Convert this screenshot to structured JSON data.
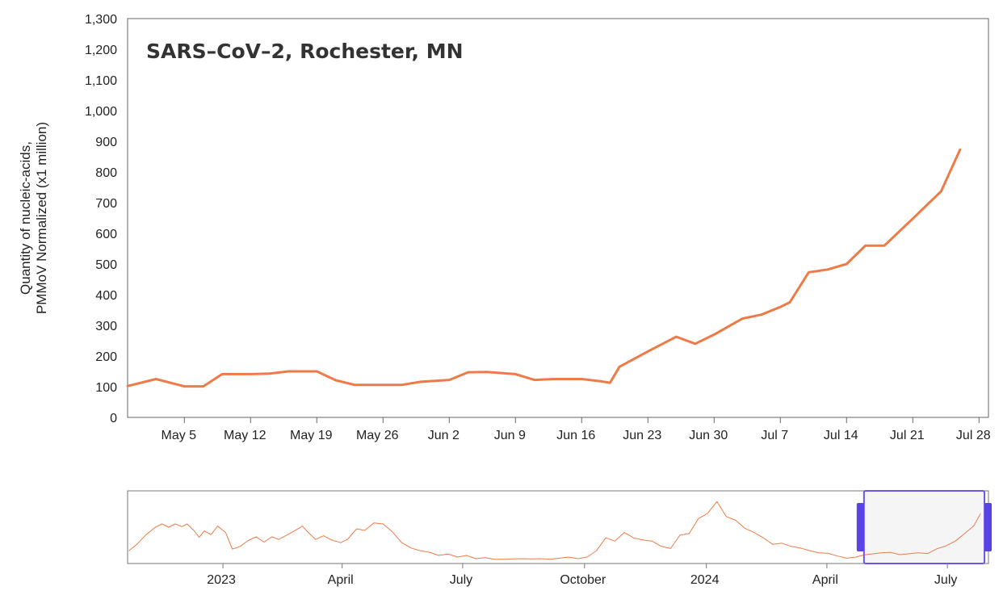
{
  "chart_data": [
    {
      "type": "line",
      "title": "SARS–CoV–2, Rochester, MN",
      "ylabel_lines": [
        "Quantity of nucleic-acids,",
        "PMMoV Normalized (x1 million)"
      ],
      "xlabel": "",
      "ylim": [
        0,
        1300
      ],
      "yticks": [
        "0",
        "100",
        "200",
        "300",
        "400",
        "500",
        "600",
        "700",
        "800",
        "900",
        "1,000",
        "1,100",
        "1,200",
        "1,300"
      ],
      "ytick_values": [
        0,
        100,
        200,
        300,
        400,
        500,
        600,
        700,
        800,
        900,
        1000,
        1100,
        1200,
        1300
      ],
      "xlim": [
        "2024-04-29",
        "2024-07-29"
      ],
      "xtick_dates": [
        "2024-05-05",
        "2024-05-12",
        "2024-05-19",
        "2024-05-26",
        "2024-06-02",
        "2024-06-09",
        "2024-06-16",
        "2024-06-23",
        "2024-06-30",
        "2024-07-07",
        "2024-07-14",
        "2024-07-21",
        "2024-07-28"
      ],
      "xtick_labels": [
        "May 5",
        "May 12",
        "May 19",
        "May 26",
        "Jun 2",
        "Jun 9",
        "Jun 16",
        "Jun 23",
        "Jun 30",
        "Jul 7",
        "Jul 14",
        "Jul 21",
        "Jul 28"
      ],
      "grid": false,
      "series": [
        {
          "color": "#ee7b47",
          "points": [
            [
              "2024-04-29",
              102
            ],
            [
              "2024-05-02",
              125
            ],
            [
              "2024-05-05",
              101
            ],
            [
              "2024-05-07",
              101
            ],
            [
              "2024-05-09",
              141
            ],
            [
              "2024-05-12",
              141
            ],
            [
              "2024-05-14",
              143
            ],
            [
              "2024-05-16",
              150
            ],
            [
              "2024-05-19",
              150
            ],
            [
              "2024-05-21",
              121
            ],
            [
              "2024-05-23",
              106
            ],
            [
              "2024-05-26",
              106
            ],
            [
              "2024-05-28",
              106
            ],
            [
              "2024-05-30",
              116
            ],
            [
              "2024-06-02",
              122
            ],
            [
              "2024-06-04",
              147
            ],
            [
              "2024-06-06",
              148
            ],
            [
              "2024-06-09",
              141
            ],
            [
              "2024-06-11",
              122
            ],
            [
              "2024-06-13",
              125
            ],
            [
              "2024-06-16",
              125
            ],
            [
              "2024-06-18",
              118
            ],
            [
              "2024-06-19",
              113
            ],
            [
              "2024-06-20",
              165
            ],
            [
              "2024-06-23",
              215
            ],
            [
              "2024-06-26",
              263
            ],
            [
              "2024-06-28",
              240
            ],
            [
              "2024-06-30",
              270
            ],
            [
              "2024-07-03",
              322
            ],
            [
              "2024-07-05",
              335
            ],
            [
              "2024-07-07",
              360
            ],
            [
              "2024-07-08",
              375
            ],
            [
              "2024-07-10",
              473
            ],
            [
              "2024-07-12",
              482
            ],
            [
              "2024-07-14",
              500
            ],
            [
              "2024-07-16",
              560
            ],
            [
              "2024-07-18",
              560
            ],
            [
              "2024-07-21",
              648
            ],
            [
              "2024-07-24",
              737
            ],
            [
              "2024-07-26",
              873
            ]
          ]
        }
      ]
    },
    {
      "type": "line",
      "xlim": [
        "2022-10-21",
        "2024-08-01"
      ],
      "xtick_dates": [
        "2023-01-01",
        "2023-04-01",
        "2023-07-01",
        "2023-10-01",
        "2024-01-01",
        "2024-04-01",
        "2024-07-01"
      ],
      "xtick_labels": [
        "2023",
        "April",
        "July",
        "October",
        "2024",
        "April",
        "July"
      ],
      "ylim": [
        0,
        1300
      ],
      "selection": [
        "2024-04-29",
        "2024-07-29"
      ],
      "series": [
        {
          "color": "#ee7b47",
          "points": [
            [
              "2022-10-22",
              180
            ],
            [
              "2022-10-28",
              300
            ],
            [
              "2022-11-04",
              480
            ],
            [
              "2022-11-11",
              620
            ],
            [
              "2022-11-16",
              680
            ],
            [
              "2022-11-21",
              620
            ],
            [
              "2022-11-26",
              680
            ],
            [
              "2022-12-01",
              630
            ],
            [
              "2022-12-05",
              680
            ],
            [
              "2022-12-10",
              560
            ],
            [
              "2022-12-14",
              430
            ],
            [
              "2022-12-18",
              550
            ],
            [
              "2022-12-23",
              480
            ],
            [
              "2022-12-28",
              640
            ],
            [
              "2023-01-03",
              520
            ],
            [
              "2023-01-08",
              210
            ],
            [
              "2023-01-14",
              260
            ],
            [
              "2023-01-20",
              370
            ],
            [
              "2023-01-26",
              440
            ],
            [
              "2023-02-01",
              340
            ],
            [
              "2023-02-07",
              440
            ],
            [
              "2023-02-12",
              390
            ],
            [
              "2023-02-18",
              470
            ],
            [
              "2023-02-24",
              550
            ],
            [
              "2023-03-02",
              640
            ],
            [
              "2023-03-06",
              530
            ],
            [
              "2023-03-12",
              390
            ],
            [
              "2023-03-18",
              460
            ],
            [
              "2023-03-24",
              380
            ],
            [
              "2023-03-31",
              330
            ],
            [
              "2023-04-05",
              390
            ],
            [
              "2023-04-12",
              590
            ],
            [
              "2023-04-18",
              560
            ],
            [
              "2023-04-25",
              700
            ],
            [
              "2023-05-02",
              680
            ],
            [
              "2023-05-09",
              530
            ],
            [
              "2023-05-16",
              330
            ],
            [
              "2023-05-23",
              230
            ],
            [
              "2023-05-30",
              180
            ],
            [
              "2023-06-06",
              150
            ],
            [
              "2023-06-13",
              90
            ],
            [
              "2023-06-20",
              120
            ],
            [
              "2023-06-27",
              60
            ],
            [
              "2023-07-04",
              90
            ],
            [
              "2023-07-11",
              30
            ],
            [
              "2023-07-18",
              50
            ],
            [
              "2023-07-25",
              20
            ],
            [
              "2023-08-01",
              20
            ],
            [
              "2023-08-08",
              25
            ],
            [
              "2023-08-15",
              30
            ],
            [
              "2023-08-22",
              25
            ],
            [
              "2023-08-29",
              30
            ],
            [
              "2023-09-05",
              20
            ],
            [
              "2023-09-12",
              40
            ],
            [
              "2023-09-19",
              60
            ],
            [
              "2023-09-26",
              30
            ],
            [
              "2023-10-03",
              60
            ],
            [
              "2023-10-10",
              180
            ],
            [
              "2023-10-17",
              420
            ],
            [
              "2023-10-24",
              360
            ],
            [
              "2023-10-31",
              520
            ],
            [
              "2023-11-07",
              420
            ],
            [
              "2023-11-14",
              380
            ],
            [
              "2023-11-21",
              360
            ],
            [
              "2023-11-28",
              260
            ],
            [
              "2023-12-05",
              220
            ],
            [
              "2023-12-12",
              470
            ],
            [
              "2023-12-19",
              500
            ],
            [
              "2023-12-26",
              780
            ],
            [
              "2024-01-02",
              880
            ],
            [
              "2024-01-09",
              1100
            ],
            [
              "2024-01-16",
              820
            ],
            [
              "2024-01-23",
              750
            ],
            [
              "2024-01-30",
              600
            ],
            [
              "2024-02-06",
              520
            ],
            [
              "2024-02-13",
              420
            ],
            [
              "2024-02-20",
              300
            ],
            [
              "2024-02-27",
              320
            ],
            [
              "2024-03-05",
              260
            ],
            [
              "2024-03-12",
              230
            ],
            [
              "2024-03-19",
              180
            ],
            [
              "2024-03-26",
              140
            ],
            [
              "2024-04-02",
              130
            ],
            [
              "2024-04-09",
              80
            ],
            [
              "2024-04-16",
              40
            ],
            [
              "2024-04-23",
              60
            ],
            [
              "2024-04-29",
              100
            ],
            [
              "2024-05-12",
              140
            ],
            [
              "2024-05-19",
              150
            ],
            [
              "2024-05-26",
              106
            ],
            [
              "2024-06-02",
              122
            ],
            [
              "2024-06-09",
              141
            ],
            [
              "2024-06-16",
              125
            ],
            [
              "2024-06-23",
              215
            ],
            [
              "2024-06-30",
              270
            ],
            [
              "2024-07-07",
              360
            ],
            [
              "2024-07-14",
              500
            ],
            [
              "2024-07-21",
              648
            ],
            [
              "2024-07-26",
              873
            ]
          ]
        }
      ]
    }
  ]
}
